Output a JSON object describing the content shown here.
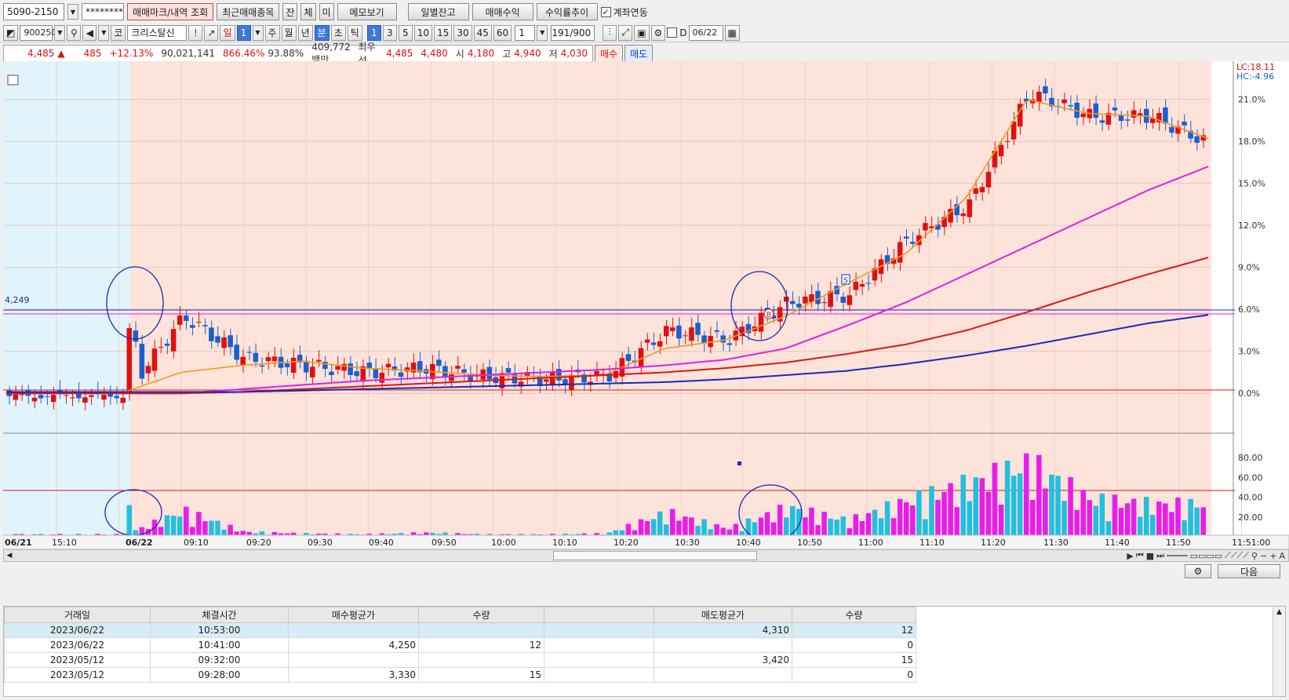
{
  "toolbar1": {
    "account": "5090-2150",
    "password": "********",
    "buttons": [
      "매매마크/내역 조회",
      "최근매매종목",
      "잔",
      "체",
      "미",
      "메모보기"
    ],
    "buttons2": [
      "일별잔고",
      "매매수익",
      "수익률추이"
    ],
    "link_label": "계좌연동"
  },
  "toolbar2": {
    "code": "900250",
    "market": "코",
    "stock_name": "크리스탈신",
    "periods": [
      "일",
      "1"
    ],
    "units": [
      "주",
      "월",
      "년",
      "분",
      "초",
      "틱"
    ],
    "minutes": [
      "1",
      "3",
      "5",
      "10",
      "15",
      "30",
      "45",
      "60"
    ],
    "interval_value": "1",
    "count": "191/900",
    "date_prefix": "D",
    "date": "06/22"
  },
  "quote": {
    "price": "4,485",
    "arrow": "▲",
    "change": "485",
    "change_pct": "+12.13%",
    "volume": "90,021,141",
    "vol_ratio": "866.46%",
    "rate": "93.88%",
    "amount": "409,772백만",
    "best_label": "최우선",
    "ask": "4,485",
    "bid": "4,480",
    "open_label": "시",
    "open": "4,180",
    "high_label": "고",
    "high": "4,940",
    "low_label": "저",
    "low": "4,030",
    "buy_label": "매수",
    "sell_label": "매도"
  },
  "chart": {
    "lc_label": "LC:18.11",
    "hc_label": "HC:-4.96",
    "ref_price_label": "4,249",
    "y_ticks": [
      "21.0%",
      "18.0%",
      "15.0%",
      "12.0%",
      "9.0%",
      "6.0%",
      "3.0%",
      "0.0%"
    ],
    "vol_ticks": [
      "80.00",
      "60.00",
      "40.00",
      "20.00"
    ],
    "x_ticks": [
      "06/21",
      "15:10",
      "06/22",
      "09:10",
      "09:20",
      "09:30",
      "09:40",
      "09:50",
      "10:00",
      "10:10",
      "10:20",
      "10:30",
      "10:40",
      "10:50",
      "11:00",
      "11:10",
      "11:20",
      "11:30",
      "11:40",
      "11:50",
      "11:51:00"
    ],
    "marker_buy": "B",
    "marker_sell": "S"
  },
  "chart_data": {
    "type": "candlestick",
    "title": "",
    "xlabel": "",
    "ylabel": "",
    "ylim": [
      -1.5,
      23.5
    ],
    "x": [
      "15:10",
      "09:00",
      "09:10",
      "09:20",
      "09:30",
      "09:40",
      "09:50",
      "10:00",
      "10:10",
      "10:20",
      "10:30",
      "10:40",
      "10:50",
      "11:00",
      "11:10",
      "11:20",
      "11:30",
      "11:40",
      "11:50"
    ],
    "series": [
      {
        "values": [
          -0.2,
          5.5,
          2.5,
          2.0,
          1.5,
          1.8,
          1.2,
          1.0,
          1.2,
          4.5,
          3.8,
          6.5,
          7.0,
          11.0,
          13.5,
          21.5,
          19.8,
          19.8,
          17.8
        ]
      },
      {
        "values": [
          0.0,
          1.5,
          2.0,
          2.3,
          1.8,
          1.6,
          1.3,
          1.2,
          1.3,
          3.2,
          3.8,
          5.5,
          7.8,
          10.0,
          14.0,
          21.0,
          20.0,
          19.8,
          18.2
        ]
      },
      {
        "values": [
          0.0,
          0.0,
          0.3,
          0.6,
          0.9,
          1.1,
          1.3,
          1.5,
          1.7,
          2.0,
          2.4,
          3.2,
          4.8,
          6.5,
          8.5,
          10.5,
          12.5,
          14.5,
          16.2
        ]
      },
      {
        "values": [
          0.0,
          0.0,
          0.1,
          0.3,
          0.5,
          0.7,
          0.9,
          1.1,
          1.3,
          1.5,
          1.8,
          2.2,
          2.8,
          3.5,
          4.5,
          5.8,
          7.2,
          8.5,
          9.7
        ]
      },
      {
        "values": [
          0.1,
          0.1,
          0.1,
          0.2,
          0.3,
          0.4,
          0.5,
          0.6,
          0.7,
          0.8,
          1.0,
          1.3,
          1.6,
          2.1,
          2.7,
          3.4,
          4.2,
          5.0,
          5.6
        ]
      }
    ],
    "volume": [
      2,
      32,
      6,
      4,
      3,
      5,
      3,
      3,
      4,
      30,
      10,
      36,
      20,
      45,
      65,
      90,
      46,
      40,
      40
    ]
  },
  "table": {
    "headers": [
      "거래일",
      "체결시간",
      "매수평균가",
      "수량",
      "",
      "매도평균가",
      "수량"
    ],
    "rows": [
      [
        "2023/06/22",
        "10:53:00",
        "",
        "",
        "",
        "4,310",
        "12"
      ],
      [
        "2023/06/22",
        "10:41:00",
        "4,250",
        "12",
        "",
        "",
        "0"
      ],
      [
        "2023/05/12",
        "09:32:00",
        "",
        "",
        "",
        "3,420",
        "15"
      ],
      [
        "2023/05/12",
        "09:28:00",
        "3,330",
        "15",
        "",
        "",
        "0"
      ]
    ]
  },
  "bottom": {
    "next_label": "다음"
  },
  "colors": {
    "up": "#e01010",
    "down": "#1a5fd0",
    "ma5": "#f39a1a",
    "ma20": "#e020e0",
    "ma60": "#d81818",
    "ma120": "#1a2ab8",
    "ma240": "#a8c820",
    "bg_prev": "#e2f4fb",
    "bg_today": "#fde3da"
  }
}
